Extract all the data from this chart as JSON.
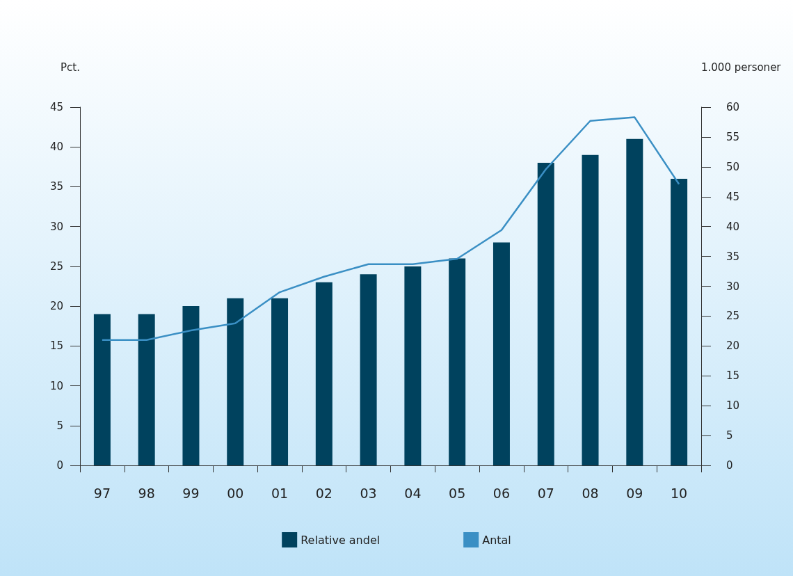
{
  "chart_data": {
    "type": "bar",
    "ylabel": "Pct.",
    "y2label": "1.000 personer",
    "categories": [
      "97",
      "98",
      "99",
      "00",
      "01",
      "02",
      "03",
      "04",
      "05",
      "06",
      "07",
      "08",
      "09",
      "10"
    ],
    "series": [
      {
        "name": "Relative andel",
        "color": "#00425e",
        "values": [
          19,
          19,
          20,
          21,
          21,
          23,
          24,
          25,
          26,
          28,
          38,
          39,
          41,
          36
        ]
      },
      {
        "name": "Antal",
        "type": "line",
        "axis": "y2",
        "color": "#3a8fc4",
        "values": [
          21,
          21,
          22.6,
          23.8,
          29,
          31.6,
          33.7,
          33.7,
          34.6,
          39.4,
          49.6,
          57.7,
          58.3,
          47.1
        ]
      }
    ],
    "ylim": [
      0,
      45
    ],
    "yticks": [
      0,
      5,
      10,
      15,
      20,
      25,
      30,
      35,
      40,
      45
    ],
    "y2lim": [
      0,
      60
    ],
    "y2ticks": [
      0,
      5,
      10,
      15,
      20,
      25,
      30,
      35,
      40,
      45,
      50,
      55,
      60
    ],
    "grid": false,
    "legend": "bottom",
    "marker": "none",
    "line_style": "solid"
  }
}
